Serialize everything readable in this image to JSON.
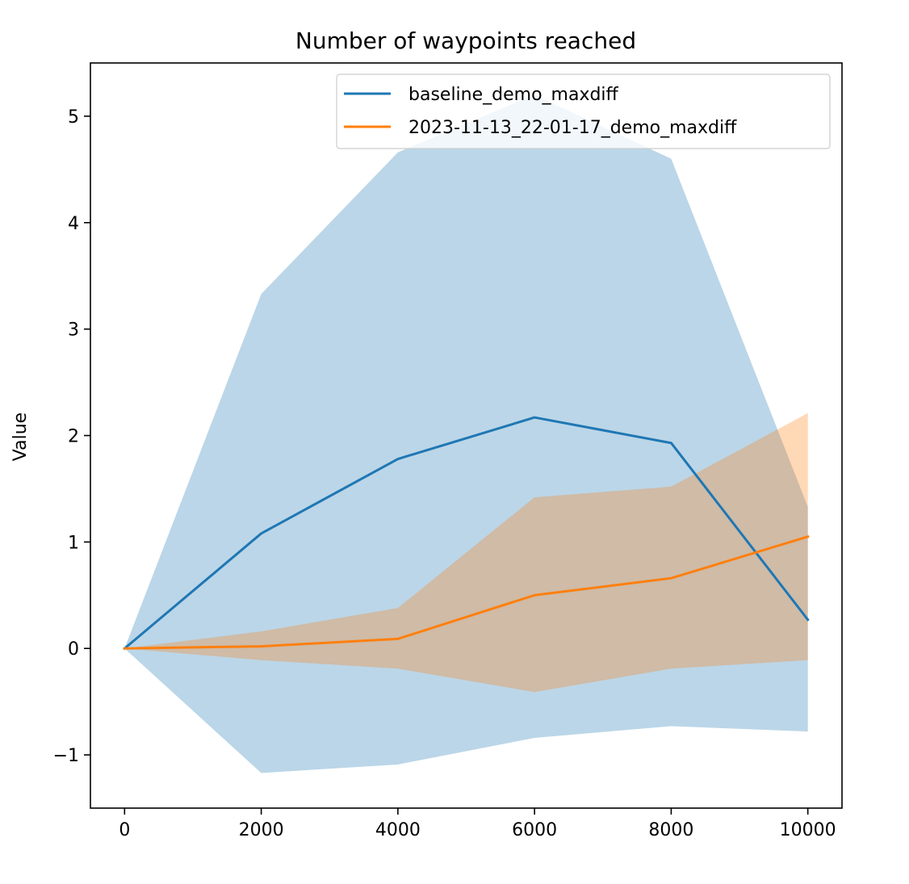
{
  "chart_data": {
    "type": "line",
    "title": "Number of waypoints reached",
    "xlabel": "",
    "ylabel": "Value",
    "xlim": [
      -500,
      10500
    ],
    "ylim": [
      -1.5,
      5.5
    ],
    "xticks": [
      0,
      2000,
      4000,
      6000,
      8000,
      10000
    ],
    "xtick_labels": [
      "0",
      "2000",
      "4000",
      "6000",
      "8000",
      "10000"
    ],
    "yticks": [
      -1,
      0,
      1,
      2,
      3,
      4,
      5
    ],
    "ytick_labels": [
      "−1",
      "0",
      "1",
      "2",
      "3",
      "4",
      "5"
    ],
    "grid": false,
    "legend_position": "upper right",
    "x": [
      0,
      2000,
      4000,
      6000,
      8000,
      10000
    ],
    "series": [
      {
        "name": "baseline_demo_maxdiff",
        "color": "#1f77b4",
        "values": [
          0.0,
          1.08,
          1.78,
          2.17,
          1.93,
          0.27
        ],
        "band_upper": [
          0.0,
          3.33,
          4.66,
          5.2,
          4.6,
          1.33
        ],
        "band_lower": [
          0.0,
          -1.17,
          -1.09,
          -0.84,
          -0.73,
          -0.78
        ]
      },
      {
        "name": "2023-11-13_22-01-17_demo_maxdiff",
        "color": "#ff7f0e",
        "values": [
          0.0,
          0.02,
          0.09,
          0.5,
          0.66,
          1.05
        ],
        "band_upper": [
          0.0,
          0.16,
          0.38,
          1.42,
          1.52,
          2.21
        ],
        "band_lower": [
          0.0,
          -0.11,
          -0.19,
          -0.41,
          -0.19,
          -0.11
        ]
      }
    ]
  }
}
